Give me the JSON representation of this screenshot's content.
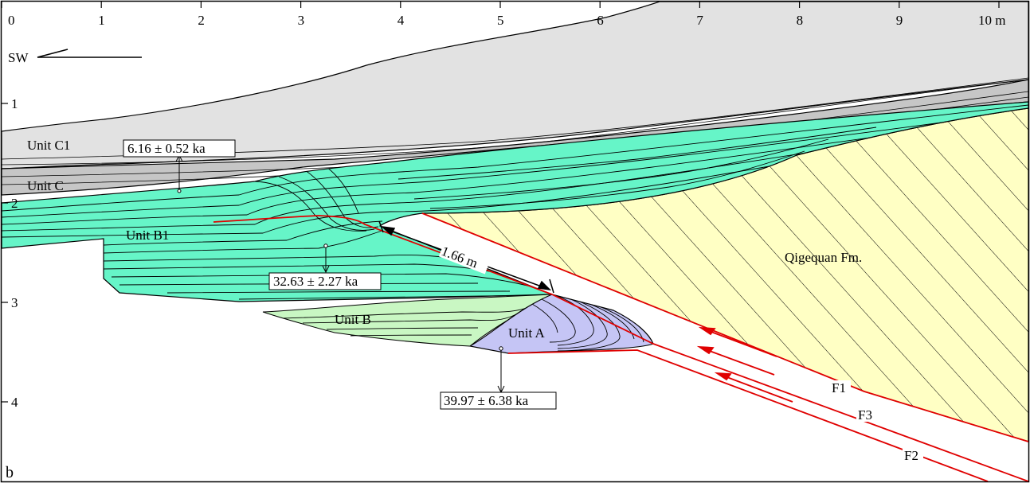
{
  "panel_letter": "b",
  "x_axis": {
    "ticks": [
      "0",
      "1",
      "2",
      "3",
      "4",
      "5",
      "6",
      "7",
      "8",
      "9",
      "10 m"
    ]
  },
  "y_axis": {
    "ticks": [
      "1",
      "2",
      "3",
      "4"
    ]
  },
  "orientation": {
    "label": "SW",
    "arrow_direction": "left"
  },
  "units": {
    "unit_c1": "Unit C1",
    "unit_c": "Unit C",
    "unit_b1": "Unit B1",
    "unit_b": "Unit B",
    "unit_a": "Unit A",
    "qigequan": "Qigequan Fm."
  },
  "ages": {
    "age_1": "6.16 ± 0.52 ka",
    "age_2": "32.63 ± 2.27 ka",
    "age_3": "39.97 ± 6.38 ka"
  },
  "offset_measurement": "1.66 m",
  "faults": {
    "f1": "F1",
    "f2": "F2",
    "f3": "F3"
  },
  "colors": {
    "unit_c1_gray": "#e2e2e2",
    "unit_c_gray": "#c6c6c6",
    "unit_b1_green": "#66f5c8",
    "unit_b_lightgreen": "#c9f7c3",
    "unit_a_blue": "#c5c5f5",
    "qigequan_yellow": "#ffffc4",
    "fault_red": "#e00000"
  }
}
